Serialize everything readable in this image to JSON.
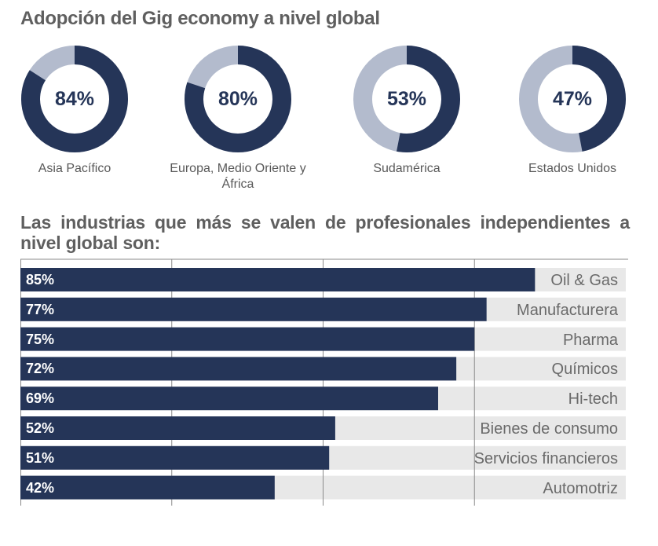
{
  "title": "Adopción del Gig economy a nivel global",
  "subtitle": "Las industrias que más se valen de profesionales independientes a nivel global son:",
  "colors": {
    "primary": "#253558",
    "secondary": "#b3bbcd",
    "track": "#e8e8e8",
    "text": "#595959"
  },
  "chart_data": [
    {
      "type": "pie",
      "variant": "donut",
      "title": "Adopción del Gig economy a nivel global",
      "slices": [
        {
          "label": "Asia Pacífico",
          "value": 84,
          "display": "84%"
        },
        {
          "label": "Europa, Medio Oriente y África",
          "value": 80,
          "display": "80%"
        },
        {
          "label": "Sudamérica",
          "value": 53,
          "display": "53%"
        },
        {
          "label": "Estados Unidos",
          "value": 47,
          "display": "47%"
        }
      ]
    },
    {
      "type": "bar",
      "orientation": "horizontal",
      "title": "Las industrias que más se valen de profesionales independientes a nivel global son:",
      "categories": [
        "Oil & Gas",
        "Manufacturera",
        "Pharma",
        "Químicos",
        "Hi-tech",
        "Bienes de consumo",
        "Servicios financieros",
        "Automotriz"
      ],
      "values": [
        85,
        77,
        75,
        72,
        69,
        52,
        51,
        42
      ],
      "labels": [
        "85%",
        "77%",
        "75%",
        "72%",
        "69%",
        "52%",
        "51%",
        "42%"
      ],
      "xlim": [
        0,
        100
      ],
      "grid": true
    }
  ]
}
